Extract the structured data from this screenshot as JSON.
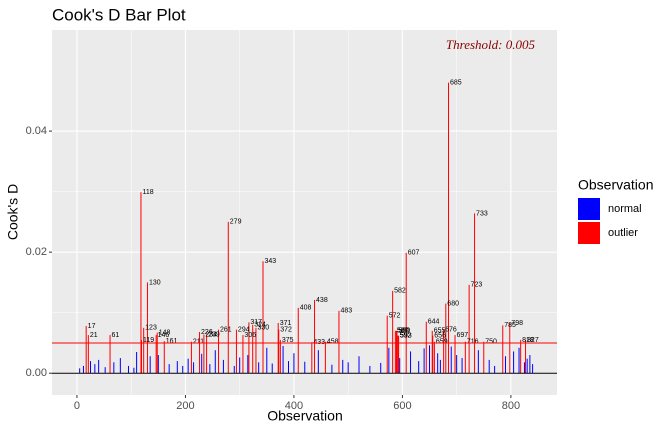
{
  "chart_data": {
    "type": "bar",
    "title": "Cook's D Bar Plot",
    "x_label": "Observation",
    "y_label": "Cook's D",
    "annotation": "Threshold: 0.005",
    "threshold": 0.005,
    "threshold_color": "red",
    "xlim": [
      -46,
      885
    ],
    "ylim": [
      -0.0036,
      0.0567
    ],
    "xticks": [
      0,
      200,
      400,
      600,
      800
    ],
    "yticks": [
      {
        "value": 0,
        "label": "0.00"
      },
      {
        "value": 0.02,
        "label": "0.02"
      },
      {
        "value": 0.04,
        "label": "0.04"
      }
    ],
    "grid": true,
    "legend_title": "Observation",
    "legend_position": "right",
    "series": [
      {
        "name": "normal",
        "color": "blue",
        "x": [
          5,
          12,
          25,
          33,
          40,
          52,
          68,
          80,
          95,
          105,
          110,
          135,
          150,
          170,
          185,
          195,
          205,
          215,
          230,
          245,
          255,
          270,
          290,
          300,
          315,
          335,
          350,
          360,
          380,
          390,
          400,
          420,
          445,
          470,
          490,
          500,
          520,
          540,
          560,
          575,
          595,
          615,
          630,
          640,
          650,
          665,
          670,
          690,
          700,
          710,
          740,
          760,
          770,
          790,
          805,
          815,
          825,
          830,
          835,
          840
        ],
        "values": [
          0.0008,
          0.0012,
          0.002,
          0.0015,
          0.0022,
          0.001,
          0.0018,
          0.0025,
          0.0012,
          0.0009,
          0.0035,
          0.0028,
          0.003,
          0.0015,
          0.002,
          0.0012,
          0.0024,
          0.0018,
          0.0032,
          0.0015,
          0.0038,
          0.0022,
          0.0012,
          0.0026,
          0.003,
          0.0018,
          0.0042,
          0.0016,
          0.0045,
          0.002,
          0.0033,
          0.0019,
          0.0038,
          0.0014,
          0.0022,
          0.0018,
          0.0028,
          0.0012,
          0.0017,
          0.0042,
          0.0025,
          0.0036,
          0.002,
          0.0041,
          0.0046,
          0.0033,
          0.0022,
          0.0044,
          0.003,
          0.0025,
          0.0038,
          0.0022,
          0.0012,
          0.0028,
          0.0036,
          0.0042,
          0.0018,
          0.0024,
          0.003,
          0.0015
        ]
      },
      {
        "name": "outlier",
        "color": "red",
        "x": [
          17,
          21,
          61,
          118,
          119,
          123,
          130,
          146,
          148,
          161,
          211,
          226,
          234,
          239,
          261,
          279,
          294,
          306,
          317,
          324,
          330,
          343,
          371,
          372,
          375,
          408,
          433,
          438,
          458,
          483,
          572,
          582,
          587,
          589,
          590,
          592,
          593,
          607,
          644,
          655,
          656,
          659,
          676,
          680,
          685,
          697,
          716,
          723,
          733,
          750,
          785,
          798,
          818,
          827
        ],
        "values": [
          0.0078,
          0.0063,
          0.0063,
          0.0299,
          0.0055,
          0.0075,
          0.015,
          0.0063,
          0.0067,
          0.0053,
          0.0052,
          0.0068,
          0.0064,
          0.0064,
          0.0072,
          0.025,
          0.0072,
          0.0063,
          0.0084,
          0.008,
          0.0075,
          0.0185,
          0.0083,
          0.0072,
          0.0055,
          0.0108,
          0.0051,
          0.0121,
          0.0052,
          0.0103,
          0.0095,
          0.0136,
          0.007,
          0.007,
          0.007,
          0.0062,
          0.0062,
          0.0199,
          0.0085,
          0.007,
          0.0062,
          0.0052,
          0.0072,
          0.0115,
          0.048,
          0.0063,
          0.0052,
          0.0146,
          0.0264,
          0.0052,
          0.0079,
          0.0083,
          0.0055,
          0.0055
        ]
      }
    ]
  }
}
